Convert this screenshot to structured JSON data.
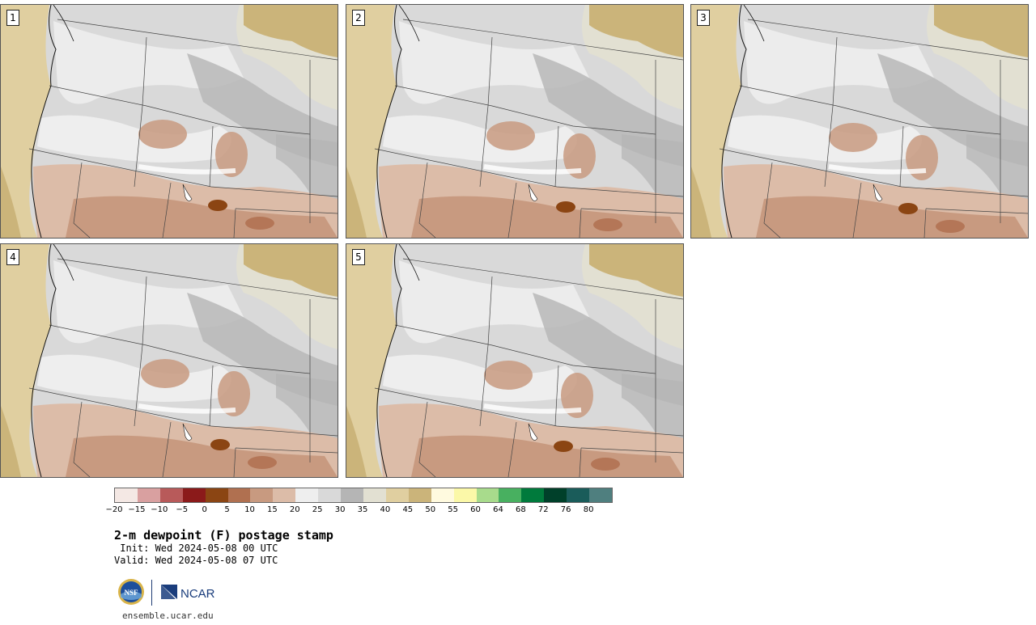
{
  "panels": [
    {
      "label": "1"
    },
    {
      "label": "2"
    },
    {
      "label": "3"
    },
    {
      "label": "4"
    },
    {
      "label": "5"
    }
  ],
  "colorbar": {
    "colors": [
      "#f4e8e4",
      "#d9a0a0",
      "#b85a5a",
      "#8b1a1a",
      "#8b4513",
      "#b07050",
      "#c89a80",
      "#dcbca8",
      "#eeeeee",
      "#d9d9d9",
      "#b5b5b5",
      "#e2e0d2",
      "#e0cfa0",
      "#cbb47a",
      "#fffadf",
      "#fbf8a8",
      "#a8db8c",
      "#48b060",
      "#007a3c",
      "#00402a",
      "#1a5c5a",
      "#4f7f7f"
    ],
    "ticks": [
      "−20",
      "−15",
      "−10",
      "−5",
      "0",
      "5",
      "10",
      "15",
      "20",
      "25",
      "30",
      "35",
      "40",
      "45",
      "50",
      "55",
      "60",
      "64",
      "68",
      "72",
      "76",
      "80"
    ]
  },
  "title": "2-m dewpoint (F) postage stamp",
  "init": " Init: Wed 2024-05-08 00 UTC",
  "valid": "Valid: Wed 2024-05-08 07 UTC",
  "logos": {
    "nsf": "NSF",
    "ncar": "NCAR"
  },
  "site": "ensemble.ucar.edu"
}
